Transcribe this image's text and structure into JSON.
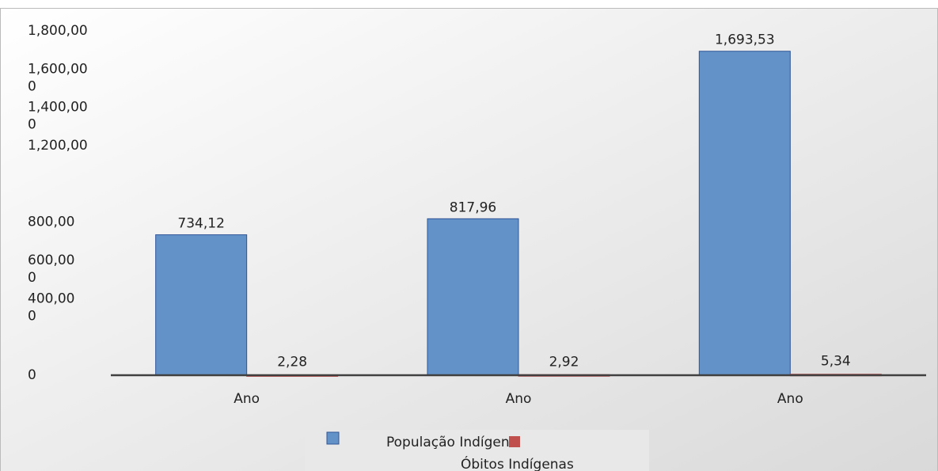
{
  "chart_data": {
    "type": "bar",
    "categories": [
      "Ano",
      "Ano",
      "Ano"
    ],
    "series": [
      {
        "name": "População Indígena",
        "color": "#6292c8",
        "values": [
          734.12,
          817.96,
          1693.53
        ],
        "value_labels": [
          "734,12",
          "817,96",
          "1,693,53"
        ]
      },
      {
        "name": "Óbitos Indígenas",
        "color": "#c0504d",
        "values": [
          2.28,
          2.92,
          5.34
        ],
        "value_labels": [
          "2,28",
          "2,92",
          "5,34"
        ]
      }
    ],
    "ylim": [
      0,
      1800
    ],
    "yticks": [
      {
        "value": 1800,
        "label": "1,800,00"
      },
      {
        "value": 1600,
        "label": "1,600,00\n0"
      },
      {
        "value": 1400,
        "label": "1,400,00\n0"
      },
      {
        "value": 1200,
        "label": "1,200,00"
      },
      {
        "value": 800,
        "label": "800,00"
      },
      {
        "value": 600,
        "label": "600,00\n0"
      },
      {
        "value": 400,
        "label": "400,00\n0"
      },
      0
    ],
    "grid": false
  }
}
